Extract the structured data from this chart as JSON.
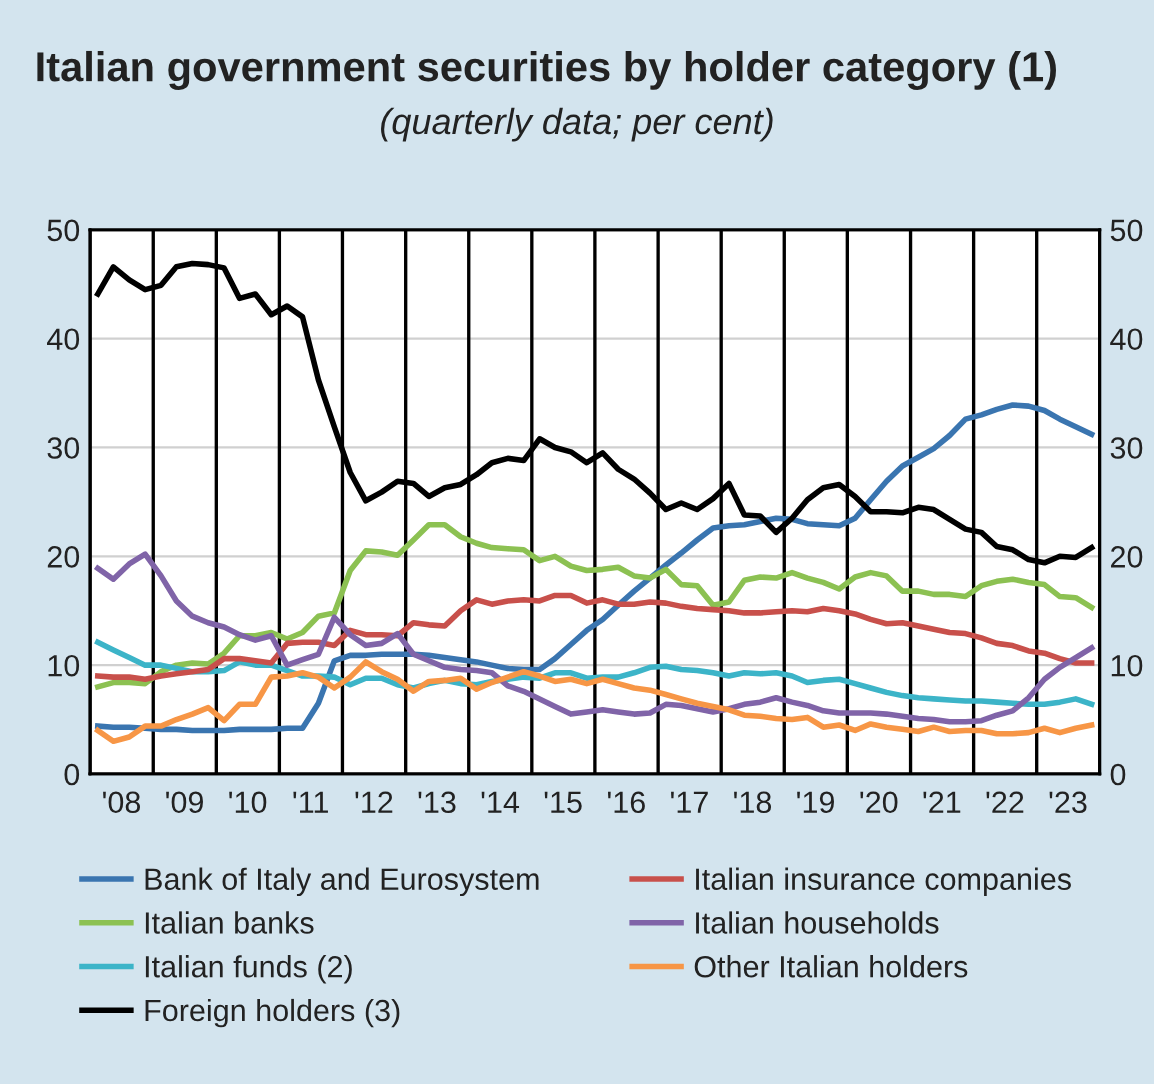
{
  "chart_data": {
    "type": "line",
    "title": "Italian government securities by holder category (1)",
    "subtitle": "(quarterly data; per cent)",
    "x": [
      "2008-02-15",
      "2008-05-15",
      "2008-08-15",
      "2008-11-15",
      "2009-02-15",
      "2009-05-15",
      "2009-08-15",
      "2009-11-15",
      "2010-02-15",
      "2010-05-15",
      "2010-08-15",
      "2010-11-15",
      "2011-02-15",
      "2011-05-15",
      "2011-08-15",
      "2011-11-15",
      "2012-02-15",
      "2012-05-15",
      "2012-08-15",
      "2012-11-15",
      "2013-02-15",
      "2013-05-15",
      "2013-08-15",
      "2013-11-15",
      "2014-02-15",
      "2014-05-15",
      "2014-08-15",
      "2014-11-15",
      "2015-02-15",
      "2015-05-15",
      "2015-08-15",
      "2015-11-15",
      "2016-02-15",
      "2016-05-15",
      "2016-08-15",
      "2016-11-15",
      "2017-02-15",
      "2017-05-15",
      "2017-08-15",
      "2017-11-15",
      "2018-02-15",
      "2018-05-15",
      "2018-08-15",
      "2018-11-15",
      "2019-02-15",
      "2019-05-15",
      "2019-08-15",
      "2019-11-15",
      "2020-02-15",
      "2020-05-15",
      "2020-08-15",
      "2020-11-15",
      "2021-02-15",
      "2021-05-15",
      "2021-08-15",
      "2021-11-15",
      "2022-02-15",
      "2022-05-15",
      "2022-08-15",
      "2022-11-15",
      "2023-02-15",
      "2023-05-15",
      "2023-08-15",
      "2023-11-15"
    ],
    "series": [
      {
        "name": "Bank of Italy and Eurosystem",
        "color": "#3a75b0",
        "values": [
          4.4,
          4.3,
          4.3,
          4.2,
          4.1,
          4.1,
          4.0,
          4.0,
          4.0,
          4.1,
          4.1,
          4.1,
          4.2,
          4.2,
          6.5,
          10.4,
          10.9,
          10.9,
          11.0,
          11.0,
          11.0,
          10.9,
          10.7,
          10.5,
          10.3,
          10.0,
          9.7,
          9.6,
          9.6,
          10.6,
          11.9,
          13.2,
          14.2,
          15.5,
          16.8,
          18.0,
          19.2,
          20.3,
          21.5,
          22.6,
          22.8,
          22.9,
          23.2,
          23.5,
          23.4,
          23.0,
          22.9,
          22.8,
          23.5,
          25.2,
          26.9,
          28.3,
          29.1,
          29.9,
          31.1,
          32.6,
          33.0,
          33.5,
          33.9,
          33.8,
          33.4,
          32.6,
          31.9,
          31.2
        ]
      },
      {
        "name": "Italian banks",
        "color": "#8cc152",
        "values": [
          8.0,
          8.4,
          8.4,
          8.3,
          9.4,
          10.0,
          10.2,
          10.1,
          11.1,
          12.7,
          12.7,
          13.0,
          12.4,
          13.0,
          14.5,
          14.8,
          18.7,
          20.5,
          20.4,
          20.1,
          21.5,
          22.9,
          22.9,
          21.8,
          21.2,
          20.8,
          20.7,
          20.6,
          19.6,
          20.0,
          19.1,
          18.7,
          18.8,
          19.0,
          18.2,
          18.0,
          18.8,
          17.4,
          17.3,
          15.5,
          15.8,
          17.8,
          18.1,
          18.0,
          18.5,
          18.0,
          17.6,
          17.0,
          18.1,
          18.5,
          18.2,
          16.8,
          16.8,
          16.5,
          16.5,
          16.3,
          17.3,
          17.7,
          17.9,
          17.6,
          17.4,
          16.3,
          16.2,
          15.3
        ]
      },
      {
        "name": "Italian funds (2)",
        "color": "#3cb4c8",
        "values": [
          12.1,
          11.4,
          10.7,
          10.0,
          10.0,
          9.7,
          9.4,
          9.4,
          9.5,
          10.3,
          10.0,
          10.0,
          9.5,
          9.0,
          9.0,
          8.9,
          8.2,
          8.8,
          8.8,
          8.2,
          7.9,
          8.3,
          8.6,
          8.3,
          8.2,
          8.5,
          8.7,
          8.9,
          8.8,
          9.3,
          9.3,
          8.8,
          8.9,
          8.9,
          9.3,
          9.8,
          9.9,
          9.6,
          9.5,
          9.3,
          9.0,
          9.3,
          9.2,
          9.3,
          9.0,
          8.4,
          8.6,
          8.7,
          8.3,
          7.9,
          7.5,
          7.2,
          7.0,
          6.9,
          6.8,
          6.7,
          6.7,
          6.6,
          6.5,
          6.4,
          6.4,
          6.6,
          6.9,
          6.4
        ]
      },
      {
        "name": "Foreign holders (3)",
        "color": "#000000",
        "values": [
          44.1,
          46.6,
          45.4,
          44.5,
          44.9,
          46.6,
          46.9,
          46.8,
          46.5,
          43.7,
          44.1,
          42.2,
          43.0,
          42.0,
          36.2,
          31.9,
          27.7,
          25.1,
          25.9,
          26.9,
          26.7,
          25.5,
          26.3,
          26.6,
          27.5,
          28.6,
          29.0,
          28.8,
          30.8,
          30.0,
          29.6,
          28.6,
          29.5,
          28.0,
          27.1,
          25.8,
          24.3,
          24.9,
          24.3,
          25.3,
          26.7,
          23.8,
          23.7,
          22.2,
          23.5,
          25.2,
          26.3,
          26.6,
          25.5,
          24.1,
          24.1,
          24.0,
          24.5,
          24.3,
          23.4,
          22.5,
          22.2,
          20.9,
          20.6,
          19.7,
          19.4,
          20.0,
          19.9,
          20.8
        ]
      },
      {
        "name": "Italian insurance companies",
        "color": "#c8504b",
        "values": [
          9.0,
          8.9,
          8.9,
          8.7,
          9.0,
          9.2,
          9.4,
          9.6,
          10.6,
          10.6,
          10.4,
          10.2,
          12.0,
          12.1,
          12.1,
          11.8,
          13.2,
          12.8,
          12.8,
          12.7,
          13.9,
          13.7,
          13.6,
          15.0,
          16.0,
          15.6,
          15.9,
          16.0,
          15.9,
          16.4,
          16.4,
          15.7,
          16.0,
          15.6,
          15.6,
          15.8,
          15.7,
          15.4,
          15.2,
          15.1,
          15.0,
          14.8,
          14.8,
          14.9,
          15.0,
          14.9,
          15.2,
          15.0,
          14.7,
          14.2,
          13.8,
          13.9,
          13.6,
          13.3,
          13.0,
          12.9,
          12.5,
          12.0,
          11.8,
          11.3,
          11.1,
          10.6,
          10.2,
          10.2
        ]
      },
      {
        "name": "Italian households",
        "color": "#8064a8",
        "values": [
          18.9,
          17.9,
          19.3,
          20.2,
          18.2,
          15.9,
          14.5,
          13.9,
          13.5,
          12.8,
          12.3,
          12.7,
          10.0,
          10.5,
          11.0,
          14.4,
          12.8,
          11.8,
          12.0,
          12.9,
          11.0,
          10.4,
          9.8,
          9.6,
          9.5,
          9.3,
          8.1,
          7.6,
          6.9,
          6.2,
          5.5,
          5.7,
          5.9,
          5.7,
          5.5,
          5.6,
          6.4,
          6.3,
          6.0,
          5.7,
          6.0,
          6.4,
          6.6,
          7.0,
          6.6,
          6.3,
          5.8,
          5.6,
          5.6,
          5.6,
          5.5,
          5.3,
          5.1,
          5.0,
          4.8,
          4.8,
          4.9,
          5.4,
          5.8,
          7.0,
          8.7,
          9.8,
          10.7,
          11.6
        ]
      },
      {
        "name": "Other Italian holders",
        "color": "#f79646",
        "values": [
          4.0,
          3.0,
          3.4,
          4.4,
          4.4,
          5.0,
          5.5,
          6.1,
          4.9,
          6.4,
          6.4,
          8.9,
          9.0,
          9.3,
          8.9,
          7.9,
          8.9,
          10.3,
          9.4,
          8.7,
          7.6,
          8.5,
          8.6,
          8.8,
          7.8,
          8.4,
          8.9,
          9.4,
          9.0,
          8.5,
          8.7,
          8.3,
          8.7,
          8.3,
          7.9,
          7.7,
          7.3,
          6.9,
          6.5,
          6.2,
          5.9,
          5.4,
          5.3,
          5.1,
          5.0,
          5.2,
          4.3,
          4.5,
          4.0,
          4.6,
          4.3,
          4.1,
          3.9,
          4.3,
          3.9,
          4.0,
          4.0,
          3.7,
          3.7,
          3.8,
          4.2,
          3.8,
          4.2,
          4.5
        ]
      }
    ],
    "xlim": [
      "2008-01-01",
      "2024-01-01"
    ],
    "xticks": [
      {
        "value": "2008-01-01",
        "label": null
      },
      {
        "value": "2008-07-01",
        "label": "'08"
      },
      {
        "value": "2009-01-01",
        "label": null
      },
      {
        "value": "2009-07-01",
        "label": "'09"
      },
      {
        "value": "2010-01-01",
        "label": null
      },
      {
        "value": "2010-07-01",
        "label": "'10"
      },
      {
        "value": "2011-01-01",
        "label": null
      },
      {
        "value": "2011-07-01",
        "label": "'11"
      },
      {
        "value": "2012-01-01",
        "label": null
      },
      {
        "value": "2012-07-01",
        "label": "'12"
      },
      {
        "value": "2013-01-01",
        "label": null
      },
      {
        "value": "2013-07-01",
        "label": "'13"
      },
      {
        "value": "2014-01-01",
        "label": null
      },
      {
        "value": "2014-07-01",
        "label": "'14"
      },
      {
        "value": "2015-01-01",
        "label": null
      },
      {
        "value": "2015-07-01",
        "label": "'15"
      },
      {
        "value": "2016-01-01",
        "label": null
      },
      {
        "value": "2016-07-01",
        "label": "'16"
      },
      {
        "value": "2017-01-01",
        "label": null
      },
      {
        "value": "2017-07-01",
        "label": "'17"
      },
      {
        "value": "2018-01-01",
        "label": null
      },
      {
        "value": "2018-07-01",
        "label": "'18"
      },
      {
        "value": "2019-01-01",
        "label": null
      },
      {
        "value": "2019-07-01",
        "label": "'19"
      },
      {
        "value": "2020-01-01",
        "label": null
      },
      {
        "value": "2020-07-01",
        "label": "'20"
      },
      {
        "value": "2021-01-01",
        "label": null
      },
      {
        "value": "2021-07-01",
        "label": "'21"
      },
      {
        "value": "2022-01-01",
        "label": null
      },
      {
        "value": "2022-07-01",
        "label": "'22"
      },
      {
        "value": "2023-01-01",
        "label": null
      },
      {
        "value": "2023-07-01",
        "label": "'23"
      },
      {
        "value": "2024-01-01",
        "label": null
      }
    ],
    "ylim": [
      0,
      50
    ],
    "yticks": [
      0,
      10,
      20,
      30,
      40,
      50
    ],
    "y2lim": [
      0,
      50
    ],
    "y2ticks": [
      0,
      10,
      20,
      30,
      40,
      50
    ],
    "grid": true,
    "legend": "bottom",
    "marker": "none",
    "line_style": "solid"
  }
}
